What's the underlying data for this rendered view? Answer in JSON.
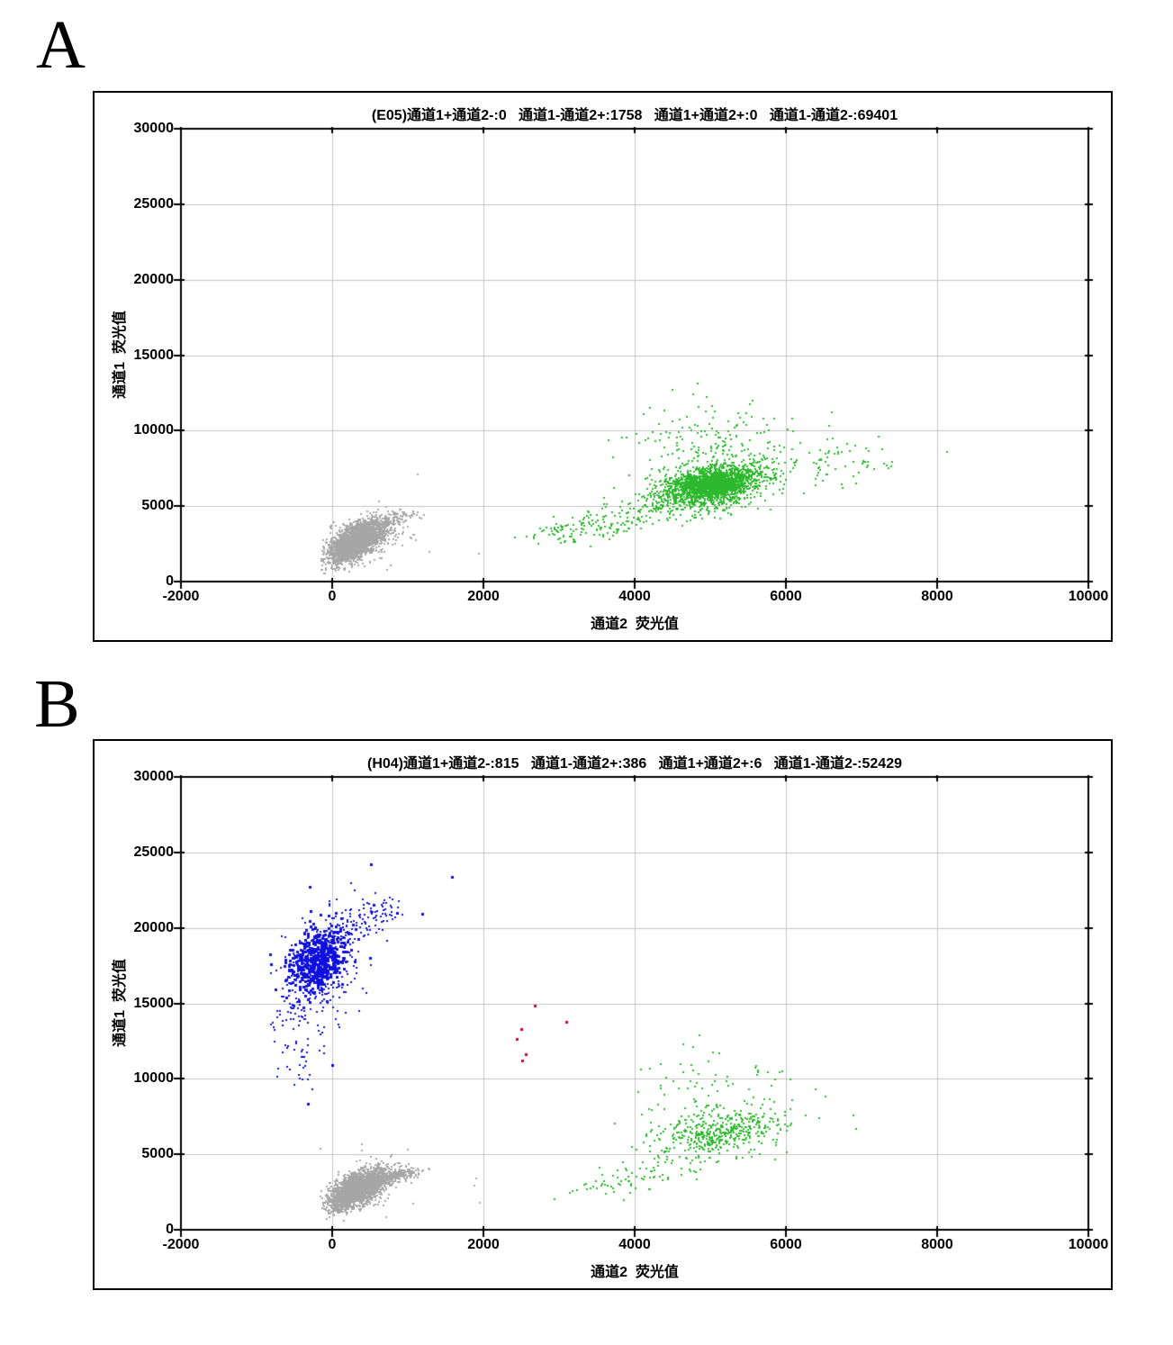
{
  "figure": {
    "panel_labels": [
      "A",
      "B"
    ]
  },
  "chart_data": [
    {
      "type": "scatter",
      "panel": "A",
      "title": "(E05)通道1+通道2-:0   通道1-通道2+:1758   通道1+通道2+:0   通道1-通道2-:69401",
      "quadrant_counts": {
        "ch1pos_ch2neg": 0,
        "ch1neg_ch2pos": 1758,
        "ch1pos_ch2pos": 0,
        "ch1neg_ch2neg": 69401
      },
      "well": "E05",
      "xlabel": "通道2  荧光值",
      "ylabel": "通道1  荧光值",
      "xlim": [
        -2000,
        10000
      ],
      "ylim": [
        0,
        30000
      ],
      "x_ticks": [
        -2000,
        0,
        2000,
        4000,
        6000,
        8000,
        10000
      ],
      "y_ticks": [
        0,
        5000,
        10000,
        15000,
        20000,
        25000,
        30000
      ],
      "grid": true,
      "grid_color": "#c3c3c3",
      "frame_color": "#000000",
      "clusters": [
        {
          "name": "negative-droplets",
          "type": "gaussian",
          "color": "#a6a6a6",
          "ps": 2,
          "n": 2600,
          "cx": 320,
          "cy": 2650,
          "sx": 165,
          "sy": 640,
          "rho": 0.6,
          "clip": [
            -150,
            1400,
            320,
            5200
          ]
        },
        {
          "name": "negative-halo",
          "type": "gaussian",
          "color": "#a6a6a6",
          "ps": 2,
          "n": 320,
          "cx": 400,
          "cy": 2850,
          "sx": 290,
          "sy": 880,
          "rho": 0.5,
          "clip": [
            -150,
            1500,
            350,
            5300
          ]
        },
        {
          "name": "negative-arm",
          "type": "segment",
          "color": "#a6a6a6",
          "ps": 2,
          "n": 130,
          "x1": 480,
          "y1": 3250,
          "x2": 980,
          "y2": 4400,
          "jx": 110,
          "jy": 220
        },
        {
          "name": "negative-outliers",
          "type": "points",
          "color": "#a6a6a6",
          "ps": 2,
          "pts": [
            [
              1130,
              7080
            ],
            [
              1286,
              1964
            ],
            [
              730,
              780
            ],
            [
              1940,
              1845
            ],
            [
              955,
              4620
            ],
            [
              1107,
              2738
            ],
            [
              620,
              5300
            ]
          ]
        },
        {
          "name": "ch2pos-tail",
          "type": "segment",
          "color": "#2db82d",
          "ps": 2,
          "n": 170,
          "x1": 2750,
          "y1": 2850,
          "x2": 4350,
          "y2": 4800,
          "jx": 260,
          "jy": 430
        },
        {
          "name": "ch2pos-main",
          "type": "gaussian",
          "color": "#2db82d",
          "ps": 2,
          "n": 1500,
          "cx": 5020,
          "cy": 6350,
          "sx": 390,
          "sy": 820,
          "rho": 0.4
        },
        {
          "name": "ch2pos-core",
          "type": "gaussian",
          "color": "#2db82d",
          "ps": 2,
          "n": 750,
          "cx": 5060,
          "cy": 6500,
          "sx": 230,
          "sy": 430,
          "rho": 0.3
        },
        {
          "name": "ch2pos-upper",
          "type": "gaussian",
          "color": "#2db82d",
          "ps": 2,
          "n": 130,
          "cx": 4950,
          "cy": 9400,
          "sx": 470,
          "sy": 1150,
          "rho": 0
        },
        {
          "name": "ch2pos-right",
          "type": "gaussian",
          "color": "#2db82d",
          "ps": 2,
          "n": 70,
          "cx": 6600,
          "cy": 7900,
          "sx": 430,
          "sy": 900,
          "rho": 0
        },
        {
          "name": "ch2pos-outliers",
          "type": "points",
          "color": "#2db82d",
          "ps": 2,
          "pts": [
            [
              4830,
              13100
            ],
            [
              4500,
              12680
            ],
            [
              4770,
              12380
            ],
            [
              6610,
              11190
            ],
            [
              8130,
              8570
            ],
            [
              7060,
              8810
            ],
            [
              5560,
              12000
            ],
            [
              4200,
              11500
            ],
            [
              7230,
              9600
            ]
          ]
        }
      ]
    },
    {
      "type": "scatter",
      "panel": "B",
      "title": "(H04)通道1+通道2-:815   通道1-通道2+:386   通道1+通道2+:6   通道1-通道2-:52429",
      "quadrant_counts": {
        "ch1pos_ch2neg": 815,
        "ch1neg_ch2pos": 386,
        "ch1pos_ch2pos": 6,
        "ch1neg_ch2neg": 52429
      },
      "well": "H04",
      "xlabel": "通道2  荧光值",
      "ylabel": "通道1  荧光值",
      "xlim": [
        -2000,
        10000
      ],
      "ylim": [
        0,
        30000
      ],
      "x_ticks": [
        -2000,
        0,
        2000,
        4000,
        6000,
        8000,
        10000
      ],
      "y_ticks": [
        0,
        5000,
        10000,
        15000,
        20000,
        25000,
        30000
      ],
      "grid": true,
      "grid_color": "#c3c3c3",
      "frame_color": "#000000",
      "clusters": [
        {
          "name": "ch1pos-core",
          "type": "gaussian",
          "color": "#1010dd",
          "ps": 3,
          "n": 520,
          "cx": -190,
          "cy": 17800,
          "sx": 190,
          "sy": 1050,
          "rho": 0.35
        },
        {
          "name": "ch1pos-spread",
          "type": "gaussian",
          "color": "#1010dd",
          "ps": 2,
          "n": 260,
          "cx": -230,
          "cy": 17000,
          "sx": 330,
          "sy": 2100,
          "rho": 0.45,
          "clip": [
            -850,
            900,
            8000,
            23500
          ]
        },
        {
          "name": "ch1pos-arm",
          "type": "segment",
          "color": "#1010dd",
          "ps": 2,
          "n": 110,
          "x1": -60,
          "y1": 19300,
          "x2": 720,
          "y2": 21400,
          "jx": 160,
          "jy": 550
        },
        {
          "name": "ch1pos-tail",
          "type": "segment",
          "color": "#1010dd",
          "ps": 2,
          "n": 60,
          "x1": -420,
          "y1": 15600,
          "x2": -470,
          "y2": 9800,
          "jx": 150,
          "jy": 900
        },
        {
          "name": "ch1pos-outliers",
          "type": "points",
          "color": "#1010dd",
          "ps": 3,
          "pts": [
            [
              512,
              24200
            ],
            [
              1583,
              23400
            ],
            [
              -300,
              22700
            ],
            [
              0,
              10900
            ],
            [
              -320,
              8330
            ],
            [
              860,
              21000
            ],
            [
              1190,
              20950
            ]
          ]
        },
        {
          "name": "double-positive",
          "type": "points",
          "color": "#cc0033",
          "ps": 3,
          "pts": [
            [
              2680,
              14880
            ],
            [
              3095,
              13750
            ],
            [
              2500,
              13330
            ],
            [
              2440,
              12620
            ],
            [
              2560,
              11610
            ],
            [
              2510,
              11190
            ]
          ]
        },
        {
          "name": "negative-droplets",
          "type": "gaussian",
          "color": "#a6a6a6",
          "ps": 2,
          "n": 2400,
          "cx": 340,
          "cy": 2700,
          "sx": 175,
          "sy": 600,
          "rho": 0.6,
          "clip": [
            -150,
            1400,
            320,
            5200
          ]
        },
        {
          "name": "negative-halo",
          "type": "gaussian",
          "color": "#a6a6a6",
          "ps": 2,
          "n": 300,
          "cx": 420,
          "cy": 2900,
          "sx": 290,
          "sy": 820,
          "rho": 0.5,
          "clip": [
            -150,
            1600,
            350,
            5400
          ]
        },
        {
          "name": "negative-arm",
          "type": "segment",
          "color": "#a6a6a6",
          "ps": 2,
          "n": 230,
          "x1": 520,
          "y1": 3250,
          "x2": 1080,
          "y2": 3850,
          "jx": 120,
          "jy": 170
        },
        {
          "name": "negative-outliers",
          "type": "points",
          "color": "#a6a6a6",
          "ps": 2,
          "pts": [
            [
              -155,
              5357
            ],
            [
              1905,
              3393
            ],
            [
              393,
              5655
            ],
            [
              1881,
              2917
            ],
            [
              1952,
              1786
            ]
          ]
        },
        {
          "name": "ch2pos-main",
          "type": "gaussian",
          "color": "#2db82d",
          "ps": 2,
          "n": 460,
          "cx": 5150,
          "cy": 6500,
          "sx": 430,
          "sy": 820,
          "rho": 0.35
        },
        {
          "name": "ch2pos-upper",
          "type": "gaussian",
          "color": "#2db82d",
          "ps": 2,
          "n": 70,
          "cx": 5050,
          "cy": 9300,
          "sx": 520,
          "sy": 1100,
          "rho": 0
        },
        {
          "name": "ch2pos-tail",
          "type": "segment",
          "color": "#2db82d",
          "ps": 2,
          "n": 80,
          "x1": 3450,
          "y1": 2600,
          "x2": 4650,
          "y2": 4400,
          "jx": 280,
          "jy": 380
        },
        {
          "name": "ch2pos-outliers",
          "type": "points",
          "color": "#2db82d",
          "ps": 2,
          "pts": [
            [
              4643,
              12260
            ],
            [
              4857,
              12857
            ],
            [
              6893,
              7560
            ],
            [
              6929,
              6670
            ],
            [
              3845,
              4464
            ],
            [
              5950,
              10500
            ],
            [
              5810,
              9520
            ],
            [
              4350,
              11000
            ]
          ]
        }
      ]
    }
  ]
}
